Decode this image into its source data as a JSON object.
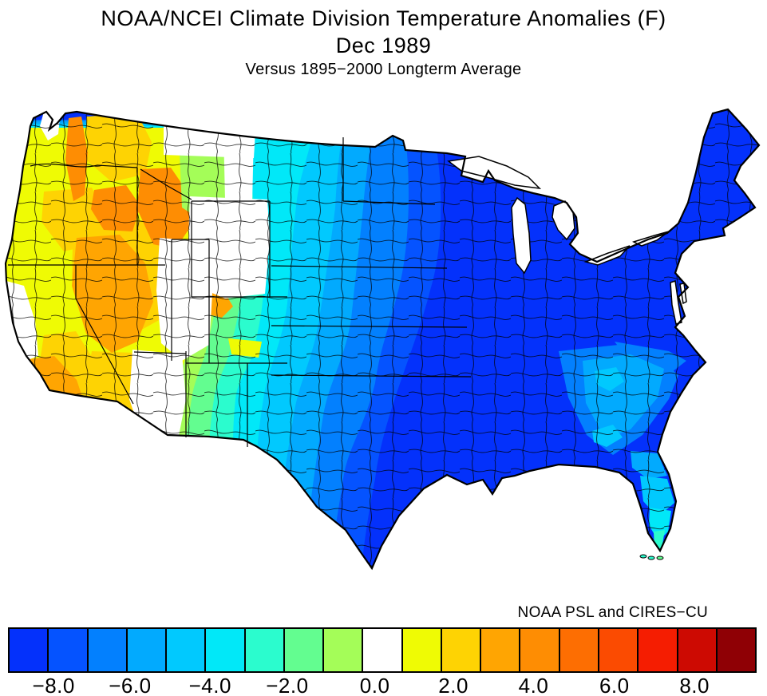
{
  "header": {
    "title": "NOAA/NCEI Climate Division Temperature Anomalies (F)",
    "period": "Dec 1989",
    "baseline": "Versus 1895−2000 Longterm Average"
  },
  "credit": "NOAA PSL and CIRES−CU",
  "colorbar": {
    "unit": "F",
    "colors": [
      "#0431FB",
      "#0553FF",
      "#0380FE",
      "#02AAFE",
      "#01C9FE",
      "#01E8F8",
      "#2BFCCE",
      "#63FD90",
      "#A4FD58",
      "#FFFFFF",
      "#EFFB04",
      "#FED303",
      "#FFA502",
      "#FE8D03",
      "#FD6E02",
      "#FB4B01",
      "#F51D01",
      "#CD0A02",
      "#8F0005"
    ],
    "ticks": [
      {
        "label": "−8.0",
        "value": -8,
        "pos_pct": 6.1
      },
      {
        "label": "−6.0",
        "value": -6,
        "pos_pct": 16.3
      },
      {
        "label": "−4.0",
        "value": -4,
        "pos_pct": 27.0
      },
      {
        "label": "−2.0",
        "value": -2,
        "pos_pct": 37.3
      },
      {
        "label": "0.0",
        "value": 0,
        "pos_pct": 49.0
      },
      {
        "label": "2.0",
        "value": 2,
        "pos_pct": 59.5
      },
      {
        "label": "4.0",
        "value": 4,
        "pos_pct": 70.2
      },
      {
        "label": "6.0",
        "value": 6,
        "pos_pct": 81.0
      },
      {
        "label": "8.0",
        "value": 8,
        "pos_pct": 91.7
      }
    ]
  },
  "chart_data": {
    "type": "choropleth-map",
    "title": "NOAA/NCEI Climate Division Temperature Anomalies (F)",
    "period": "Dec 1989",
    "baseline": "1895-2000 longterm average",
    "units": "degrees F",
    "legend_position": "bottom",
    "scale_ticks": [
      -8,
      -6,
      -4,
      -2,
      0,
      2,
      4,
      6,
      8
    ],
    "regions": [
      {
        "region": "Washington / Oregon / Idaho / western Montana",
        "anomaly_f": "+2 to +5"
      },
      {
        "region": "Washington Cascades and NE Oregon / central Idaho",
        "anomaly_f": "+4 to +5"
      },
      {
        "region": "Nevada / Utah / Arizona Great Basin",
        "anomaly_f": "+1 to +4"
      },
      {
        "region": "Southern California coast",
        "anomaly_f": "+3 to +4"
      },
      {
        "region": "Central-east Montana, Wyoming, east Utah / west Colorado, NE Arizona / NW New Mexico, central California coast",
        "anomaly_f": "near 0"
      },
      {
        "region": "Central Montana, south-central Colorado, southern New Mexico",
        "anomaly_f": "+1 to +2 (greens/yellows)"
      },
      {
        "region": "Western Dakotas through eastern New Mexico",
        "anomaly_f": "-1 to -3"
      },
      {
        "region": "Central plains, west Texas, Big Bend",
        "anomaly_f": "-3 to -5"
      },
      {
        "region": "Eastern two-thirds of US (Midwest, South, Northeast)",
        "anomaly_f": "-7 to -9"
      },
      {
        "region": "Georgia / Carolinas / SC coastal plain",
        "anomaly_f": "-5 to -6"
      },
      {
        "region": "North-central Florida",
        "anomaly_f": "-5 to -6"
      },
      {
        "region": "South Florida peninsula and Keys",
        "anomaly_f": "-3 to -4"
      }
    ]
  }
}
